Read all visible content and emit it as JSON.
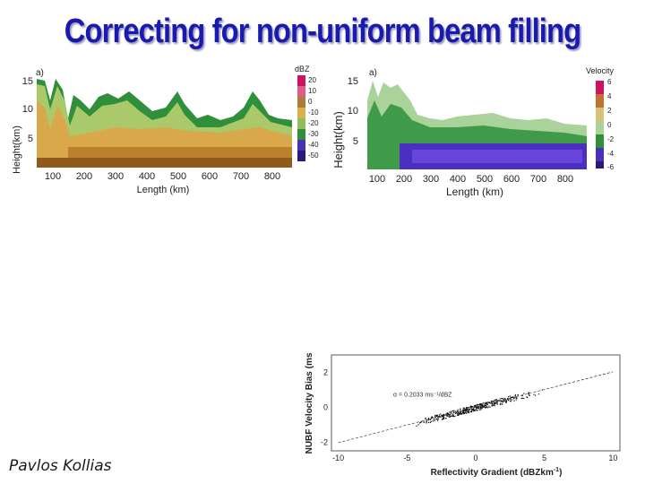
{
  "slide": {
    "title": "Correcting for non-uniform beam filling",
    "author": "Pavlos Kollias"
  },
  "chart_data": [
    {
      "type": "heatmap",
      "panel_label": "a)",
      "xlabel": "Length (km)",
      "ylabel": "Height(km)",
      "x_ticks": [
        "100",
        "200",
        "300",
        "400",
        "500",
        "600",
        "700",
        "800"
      ],
      "y_ticks": [
        "5",
        "10",
        "15"
      ],
      "xlim": [
        50,
        860
      ],
      "ylim": [
        0,
        16
      ],
      "colorbar_title": "dBZ",
      "colorbar_ticks": [
        "20",
        "10",
        "0",
        "-10",
        "-20",
        "-30",
        "-40",
        "-50"
      ]
    },
    {
      "type": "heatmap",
      "panel_label": "a)",
      "xlabel": "Length (km)",
      "ylabel": "Height(km)",
      "x_ticks": [
        "100",
        "200",
        "300",
        "400",
        "500",
        "600",
        "700",
        "800"
      ],
      "y_ticks": [
        "5",
        "10",
        "15"
      ],
      "xlim": [
        50,
        860
      ],
      "ylim": [
        0,
        16
      ],
      "colorbar_title": "Velocity",
      "colorbar_ticks": [
        "6",
        "4",
        "2",
        "0",
        "-2",
        "-4",
        "-6"
      ]
    },
    {
      "type": "scatter",
      "xlabel": "Reflectivity Gradient (dBZkm",
      "xlabel_sup": "-1",
      "xlabel_end": ")",
      "ylabel": "NUBF Velocity Bias (ms",
      "x_ticks": [
        -10,
        -5,
        0,
        5,
        10
      ],
      "y_ticks": [
        -2,
        0,
        2
      ],
      "xlim": [
        -10.5,
        10.5
      ],
      "ylim": [
        -2.5,
        3.0
      ],
      "fit_slope": 0.2033,
      "annotation": "α = 0.2033 ms⁻¹/dBZ"
    }
  ]
}
